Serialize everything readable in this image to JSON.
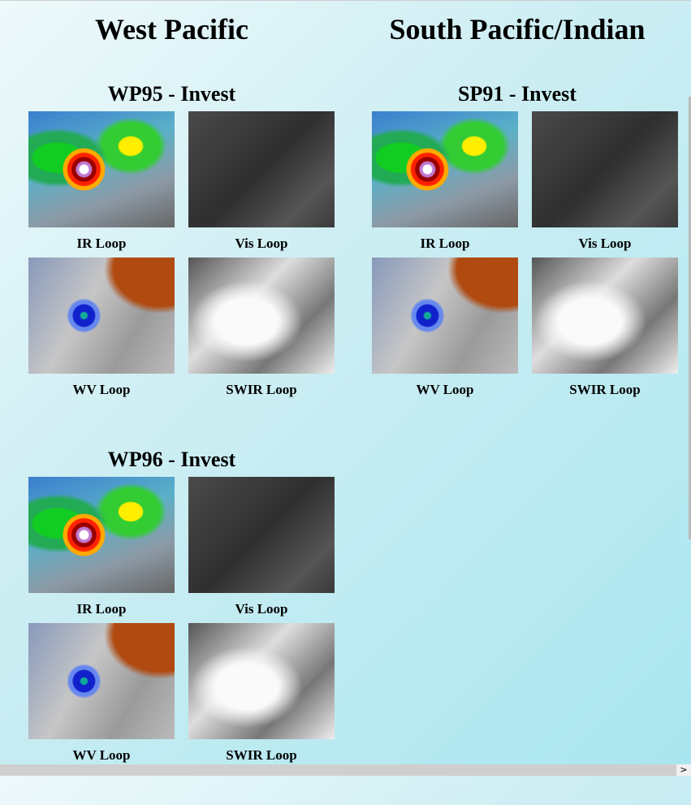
{
  "columns": [
    {
      "title": "West Pacific",
      "storms": [
        {
          "title": "WP95 - Invest",
          "loops": [
            "IR Loop",
            "Vis Loop",
            "WV Loop",
            "SWIR Loop"
          ]
        },
        {
          "title": "WP96 - Invest",
          "loops": [
            "IR Loop",
            "Vis Loop",
            "WV Loop",
            "SWIR Loop"
          ]
        }
      ]
    },
    {
      "title": "South Pacific/Indian",
      "storms": [
        {
          "title": "SP91 - Invest",
          "loops": [
            "IR Loop",
            "Vis Loop",
            "WV Loop",
            "SWIR Loop"
          ]
        }
      ]
    }
  ]
}
